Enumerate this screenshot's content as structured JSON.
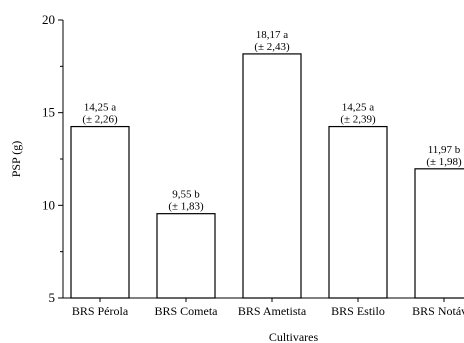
{
  "chart_data": {
    "type": "bar",
    "title": "",
    "xlabel": "Cultivares",
    "ylabel": "PSP (g)",
    "ylim": [
      5,
      20
    ],
    "yticks": [
      "5",
      "10",
      "15",
      "20"
    ],
    "grid": false,
    "legend": "none",
    "bar_fill": "#ffffff",
    "bar_stroke": "#000000",
    "categories": [
      "BRS Pérola",
      "BRS Cometa",
      "BRS Ametista",
      "BRS Estilo",
      "BRS Notável"
    ],
    "values": [
      14.25,
      9.55,
      18.17,
      14.25,
      11.97
    ],
    "value_labels": [
      "14,25 a",
      "9,55 b",
      "18,17 a",
      "14,25 a",
      "11,97 b"
    ],
    "error_labels": [
      "(± 2,26)",
      "(± 1,83)",
      "(± 2,43)",
      "(± 2,39)",
      "(± 1,98)"
    ]
  }
}
